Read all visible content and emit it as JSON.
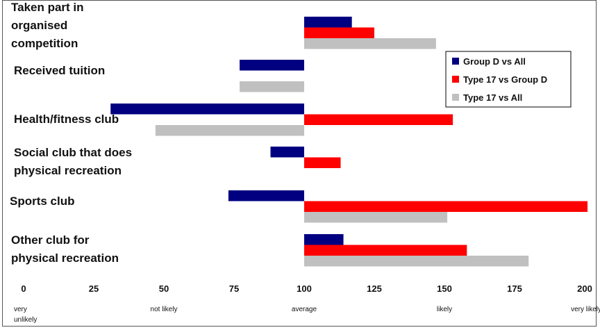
{
  "chart_data": {
    "type": "bar",
    "orientation": "horizontal",
    "baseline": 100,
    "xlim": [
      0,
      200
    ],
    "categories": [
      [
        "Taken part in",
        "organised",
        "competition"
      ],
      [
        "Received tuition"
      ],
      [
        "Health/fitness club"
      ],
      [
        "Social club that does",
        "physical recreation"
      ],
      [
        "Sports club"
      ],
      [
        "Other club for",
        "physical recreation"
      ]
    ],
    "series": [
      {
        "name": "Group D vs All",
        "color": "#000080",
        "values": [
          117,
          77,
          31,
          88,
          73,
          114
        ]
      },
      {
        "name": "Type 17 vs Group D",
        "color": "#ff0000",
        "values": [
          125,
          null,
          153,
          113,
          201,
          158
        ]
      },
      {
        "name": "Type 17 vs All",
        "color": "#c0c0c0",
        "values": [
          147,
          77,
          47,
          null,
          151,
          180
        ]
      }
    ],
    "x_ticks": [
      "0",
      "25",
      "50",
      "75",
      "100",
      "125",
      "150",
      "175",
      "200"
    ],
    "x_descriptors": [
      {
        "at": 0,
        "lines": [
          "very",
          "unlikely"
        ]
      },
      {
        "at": 50,
        "lines": [
          "not likely"
        ]
      },
      {
        "at": 100,
        "lines": [
          "average"
        ]
      },
      {
        "at": 150,
        "lines": [
          "likely"
        ]
      },
      {
        "at": 200,
        "lines": [
          "very likely"
        ]
      }
    ],
    "legend_position": "top-right",
    "grid": false
  }
}
